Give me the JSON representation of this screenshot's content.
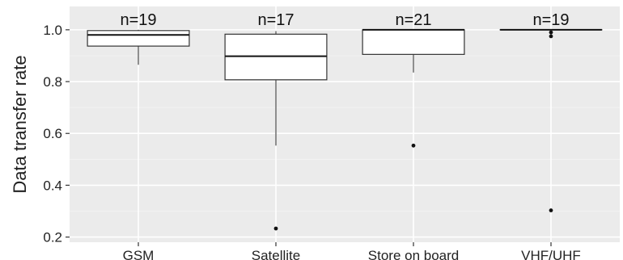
{
  "chart_data": {
    "type": "box",
    "title": "",
    "xlabel": "",
    "ylabel": "Data transfer rate",
    "ylim": [
      0.18,
      1.09
    ],
    "yticks": [
      0.2,
      0.4,
      0.6,
      0.8,
      1.0
    ],
    "ytick_labels": [
      "0.2",
      "0.4",
      "0.6",
      "0.8",
      "1.0"
    ],
    "grid": true,
    "categories": [
      "GSM",
      "Satellite",
      "Store on board",
      "VHF/UHF"
    ],
    "n_labels": [
      "n=19",
      "n=17",
      "n=21",
      "n=19"
    ],
    "boxes": [
      {
        "category": "GSM",
        "whisker_low": 0.865,
        "q1": 0.937,
        "median": 0.98,
        "q3": 0.997,
        "whisker_high": 1.0,
        "outliers": []
      },
      {
        "category": "Satellite",
        "whisker_low": 0.553,
        "q1": 0.807,
        "median": 0.898,
        "q3": 0.983,
        "whisker_high": 0.995,
        "outliers": [
          0.233
        ]
      },
      {
        "category": "Store on board",
        "whisker_low": 0.835,
        "q1": 0.905,
        "median": 1.0,
        "q3": 1.0,
        "whisker_high": 1.0,
        "outliers": [
          0.553
        ]
      },
      {
        "category": "VHF/UHF",
        "whisker_low": 1.0,
        "q1": 1.0,
        "median": 1.0,
        "q3": 1.0,
        "whisker_high": 1.0,
        "outliers": [
          0.99,
          0.975,
          0.303
        ]
      }
    ],
    "colors": {
      "panel_background": "#ebebeb",
      "grid_major": "#ffffff",
      "box_fill": "#ffffff",
      "box_stroke": "#333333",
      "whisker": "#555555",
      "outlier": "#111111"
    }
  }
}
